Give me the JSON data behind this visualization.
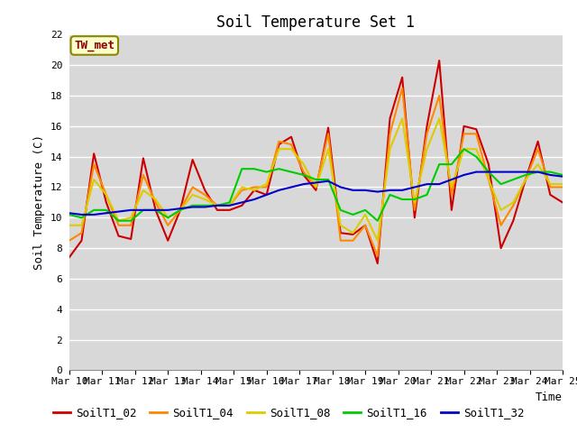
{
  "title": "Soil Temperature Set 1",
  "xlabel": "Time",
  "ylabel": "Soil Temperature (C)",
  "ylim": [
    0,
    22
  ],
  "yticks": [
    0,
    2,
    4,
    6,
    8,
    10,
    12,
    14,
    16,
    18,
    20,
    22
  ],
  "x_labels": [
    "Mar 10",
    "Mar 11",
    "Mar 12",
    "Mar 13",
    "Mar 14",
    "Mar 15",
    "Mar 16",
    "Mar 17",
    "Mar 18",
    "Mar 19",
    "Mar 20",
    "Mar 21",
    "Mar 22",
    "Mar 23",
    "Mar 24",
    "Mar 25"
  ],
  "annotation": "TW_met",
  "annotation_color": "#880000",
  "annotation_bg": "#ffffcc",
  "annotation_border": "#888800",
  "series": {
    "SoilT1_02": {
      "color": "#cc0000",
      "values": [
        7.4,
        8.5,
        14.2,
        11.0,
        8.8,
        8.6,
        13.9,
        10.5,
        8.5,
        10.5,
        13.8,
        11.8,
        10.5,
        10.5,
        10.8,
        11.8,
        11.5,
        14.8,
        15.3,
        12.8,
        11.8,
        15.9,
        9.0,
        8.9,
        9.5,
        7.0,
        16.5,
        19.2,
        10.0,
        16.0,
        20.3,
        10.5,
        16.0,
        15.8,
        13.5,
        8.0,
        9.8,
        12.5,
        15.0,
        11.5,
        11.0
      ]
    },
    "SoilT1_04": {
      "color": "#ff8800",
      "values": [
        8.5,
        9.0,
        13.5,
        11.5,
        9.5,
        9.5,
        12.8,
        11.0,
        9.5,
        10.5,
        12.0,
        11.5,
        10.8,
        10.8,
        11.8,
        12.0,
        12.0,
        15.0,
        14.8,
        13.0,
        12.0,
        15.5,
        8.5,
        8.5,
        9.5,
        7.5,
        15.5,
        18.5,
        10.5,
        15.5,
        18.0,
        11.5,
        15.5,
        15.5,
        12.5,
        9.5,
        10.8,
        12.5,
        14.5,
        12.0,
        12.0
      ]
    },
    "SoilT1_08": {
      "color": "#ddcc00",
      "values": [
        9.5,
        9.5,
        12.5,
        11.5,
        9.8,
        10.0,
        11.8,
        11.2,
        10.0,
        10.5,
        11.5,
        11.2,
        10.8,
        10.8,
        12.0,
        11.8,
        12.2,
        14.5,
        14.5,
        13.5,
        12.0,
        14.5,
        9.5,
        9.0,
        10.2,
        8.5,
        14.5,
        16.5,
        11.0,
        14.5,
        16.5,
        12.0,
        14.5,
        14.5,
        12.5,
        10.5,
        11.0,
        12.5,
        13.5,
        12.2,
        12.2
      ]
    },
    "SoilT1_16": {
      "color": "#00cc00",
      "values": [
        10.2,
        10.0,
        10.5,
        10.5,
        9.8,
        9.8,
        10.5,
        10.5,
        10.0,
        10.5,
        10.8,
        10.8,
        10.8,
        11.0,
        13.2,
        13.2,
        13.0,
        13.2,
        13.0,
        12.8,
        12.5,
        12.5,
        10.5,
        10.2,
        10.5,
        9.8,
        11.5,
        11.2,
        11.2,
        11.5,
        13.5,
        13.5,
        14.5,
        14.0,
        13.0,
        12.2,
        12.5,
        12.8,
        13.0,
        13.0,
        12.8
      ]
    },
    "SoilT1_32": {
      "color": "#0000cc",
      "values": [
        10.3,
        10.2,
        10.2,
        10.3,
        10.4,
        10.5,
        10.5,
        10.5,
        10.5,
        10.6,
        10.7,
        10.7,
        10.8,
        10.8,
        11.0,
        11.2,
        11.5,
        11.8,
        12.0,
        12.2,
        12.3,
        12.4,
        12.0,
        11.8,
        11.8,
        11.7,
        11.8,
        11.8,
        12.0,
        12.2,
        12.2,
        12.5,
        12.8,
        13.0,
        13.0,
        13.0,
        13.0,
        13.0,
        13.0,
        12.8,
        12.7
      ]
    }
  },
  "bg_color": "#d8d8d8",
  "grid_color": "#ffffff",
  "title_fontsize": 12,
  "label_fontsize": 9,
  "tick_fontsize": 8,
  "line_width": 1.5
}
